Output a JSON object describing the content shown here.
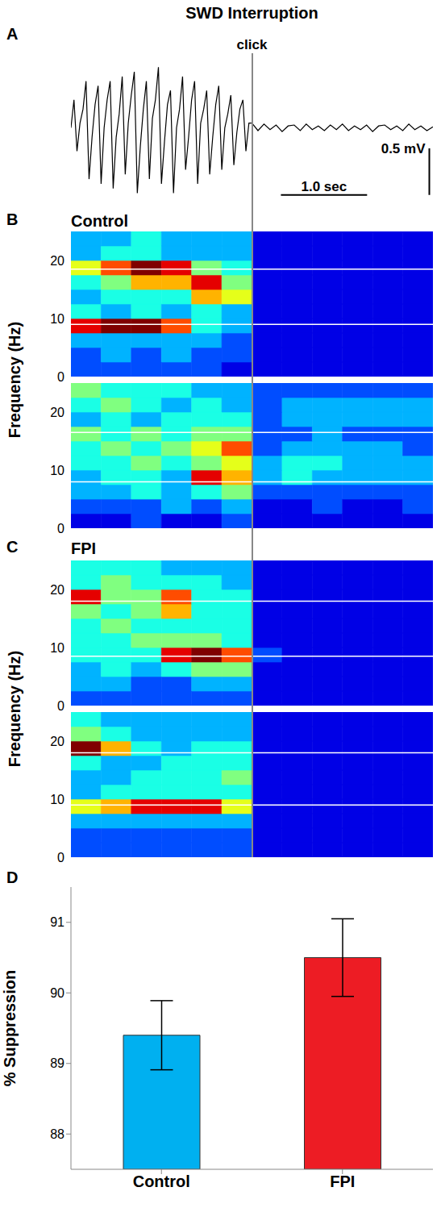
{
  "title": "SWD Interruption",
  "chart_data": [
    {
      "panel": "A",
      "type": "line",
      "annotation": "click",
      "click": 2.1,
      "color": "#000000",
      "tick_labels": false,
      "xlim": [
        0,
        4.2
      ],
      "ylim": [
        -0.8,
        0.8
      ],
      "x": [
        0,
        0.035,
        0.07,
        0.105,
        0.14,
        0.175,
        0.21,
        0.245,
        0.28,
        0.315,
        0.35,
        0.385,
        0.42,
        0.455,
        0.49,
        0.525,
        0.56,
        0.595,
        0.63,
        0.665,
        0.7,
        0.735,
        0.77,
        0.805,
        0.84,
        0.875,
        0.91,
        0.945,
        0.98,
        1.015,
        1.05,
        1.085,
        1.12,
        1.155,
        1.19,
        1.225,
        1.26,
        1.295,
        1.33,
        1.365,
        1.4,
        1.435,
        1.47,
        1.505,
        1.54,
        1.575,
        1.61,
        1.645,
        1.68,
        1.715,
        1.75,
        1.785,
        1.82,
        1.855,
        1.89,
        1.925,
        1.96,
        1.995,
        2.03,
        2.065,
        2.1,
        2.17,
        2.24,
        2.31,
        2.38,
        2.45,
        2.52,
        2.59,
        2.66,
        2.73,
        2.8,
        2.87,
        2.94,
        3.01,
        3.08,
        3.15,
        3.22,
        3.29,
        3.36,
        3.43,
        3.5,
        3.57,
        3.64,
        3.71,
        3.78,
        3.85,
        3.92,
        3.99,
        4.06,
        4.13,
        4.2
      ],
      "values": [
        0,
        0.3,
        -0.25,
        0.05,
        0.2,
        0.5,
        -0.55,
        -0.1,
        0.25,
        0.45,
        -0.6,
        0,
        0.3,
        0.5,
        -0.65,
        -0.1,
        0.15,
        0.55,
        -0.5,
        0.05,
        0.35,
        0.6,
        -0.7,
        -0.2,
        0.2,
        0.5,
        -0.55,
        0.1,
        0.3,
        0.65,
        -0.6,
        -0.15,
        0.25,
        0.4,
        -0.7,
        0,
        0.2,
        0.55,
        -0.45,
        -0.1,
        0.3,
        0.5,
        -0.6,
        0.05,
        0.2,
        0.4,
        -0.5,
        -0.1,
        0.25,
        0.45,
        -0.45,
        0,
        0.15,
        0.35,
        -0.4,
        -0.05,
        0.2,
        0.3,
        -0.25,
        0.05,
        0.05,
        -0.03,
        0.04,
        -0.02,
        0.03,
        -0.04,
        0.02,
        0.03,
        -0.03,
        0.04,
        -0.02,
        0.02,
        -0.03,
        0.03,
        -0.02,
        0.04,
        -0.03,
        0.02,
        -0.02,
        0.03,
        -0.04,
        0.02,
        0.03,
        -0.02,
        0.02,
        -0.03,
        0.04,
        -0.02,
        0.02,
        -0.03,
        0.01
      ],
      "scale_bars": [
        {
          "axis": "x",
          "value": 1.0,
          "label": "1.0 sec"
        },
        {
          "axis": "y",
          "value": 0.5,
          "label": "0.5 mV"
        }
      ]
    },
    {
      "panel": "B",
      "type": "heatmap",
      "title": "Control",
      "ylabel": "Frequency (Hz)",
      "tick_labels": "y",
      "xlim": [
        0,
        4.2
      ],
      "ylim": [
        0,
        25
      ],
      "yticks": [
        0,
        10,
        20
      ],
      "color_range": [
        0,
        10
      ],
      "x_bins": [
        0,
        0.35,
        0.7,
        1.05,
        1.4,
        1.75,
        2.1,
        2.45,
        2.8,
        3.15,
        3.5,
        3.85,
        4.2
      ],
      "y_bins": [
        0,
        2.5,
        5,
        7.5,
        10,
        12.5,
        15,
        17.5,
        20,
        22.5,
        25
      ],
      "maps": [
        {
          "hlines": [
            18.5,
            9
          ],
          "cells": [
            [
              2,
              2,
              2,
              2,
              2,
              1,
              1,
              1,
              1,
              1,
              1,
              1
            ],
            [
              2,
              3,
              2,
              3,
              2,
              2,
              1,
              1,
              1,
              1,
              1,
              1
            ],
            [
              3,
              3,
              3,
              3,
              3,
              2,
              1,
              1,
              1,
              1,
              1,
              1
            ],
            [
              9,
              10,
              10,
              8,
              4,
              3,
              1,
              1,
              1,
              1,
              1,
              1
            ],
            [
              4,
              3,
              4,
              3,
              4,
              3,
              1,
              1,
              1,
              1,
              1,
              1
            ],
            [
              3,
              4,
              4,
              4,
              7,
              6,
              1,
              1,
              1,
              1,
              1,
              1
            ],
            [
              4,
              5,
              7,
              7,
              9,
              5,
              1,
              1,
              1,
              1,
              1,
              1
            ],
            [
              6,
              8,
              10,
              9,
              5,
              4,
              1,
              1,
              1,
              1,
              1,
              1
            ],
            [
              3,
              4,
              4,
              3,
              3,
              3,
              1,
              1,
              1,
              1,
              1,
              1
            ],
            [
              3,
              3,
              4,
              3,
              3,
              3,
              1,
              1,
              1,
              1,
              1,
              1
            ]
          ]
        },
        {
          "hlines": [
            16.5,
            8
          ],
          "cells": [
            [
              1,
              1,
              2,
              1,
              1,
              2,
              1,
              1,
              1,
              1,
              1,
              1
            ],
            [
              2,
              2,
              2,
              3,
              2,
              3,
              1,
              1,
              2,
              1,
              1,
              2
            ],
            [
              3,
              3,
              4,
              3,
              4,
              5,
              2,
              2,
              2,
              2,
              2,
              2
            ],
            [
              3,
              4,
              4,
              3,
              9,
              7,
              3,
              4,
              3,
              3,
              3,
              3
            ],
            [
              4,
              4,
              5,
              4,
              5,
              6,
              3,
              4,
              4,
              3,
              3,
              3
            ],
            [
              4,
              5,
              4,
              5,
              6,
              8,
              2,
              3,
              3,
              3,
              3,
              2
            ],
            [
              5,
              4,
              5,
              4,
              5,
              5,
              2,
              2,
              3,
              2,
              2,
              2
            ],
            [
              3,
              4,
              3,
              4,
              4,
              4,
              2,
              3,
              3,
              3,
              3,
              3
            ],
            [
              4,
              5,
              4,
              3,
              4,
              3,
              2,
              3,
              3,
              3,
              3,
              3
            ],
            [
              5,
              4,
              4,
              4,
              3,
              3,
              2,
              2,
              2,
              2,
              2,
              2
            ]
          ]
        }
      ]
    },
    {
      "panel": "C",
      "type": "heatmap",
      "title": "FPI",
      "ylabel": "Frequency (Hz)",
      "tick_labels": "y",
      "xlim": [
        0,
        4.2
      ],
      "ylim": [
        0,
        25
      ],
      "yticks": [
        0,
        10,
        20
      ],
      "color_range": [
        0,
        10
      ],
      "x_bins": [
        0,
        0.35,
        0.7,
        1.05,
        1.4,
        1.75,
        2.1,
        2.45,
        2.8,
        3.15,
        3.5,
        3.85,
        4.2
      ],
      "y_bins": [
        0,
        2.5,
        5,
        7.5,
        10,
        12.5,
        15,
        17.5,
        20,
        22.5,
        25
      ],
      "maps": [
        {
          "hlines": [
            18,
            8.5
          ],
          "cells": [
            [
              2,
              2,
              2,
              2,
              2,
              2,
              1,
              1,
              1,
              1,
              1,
              1
            ],
            [
              3,
              3,
              2,
              2,
              3,
              3,
              1,
              1,
              1,
              1,
              1,
              1
            ],
            [
              3,
              4,
              3,
              4,
              5,
              5,
              1,
              1,
              1,
              1,
              1,
              1
            ],
            [
              4,
              4,
              4,
              9,
              10,
              8,
              2,
              1,
              1,
              1,
              1,
              1
            ],
            [
              4,
              4,
              5,
              5,
              5,
              4,
              1,
              1,
              1,
              1,
              1,
              1
            ],
            [
              4,
              5,
              4,
              4,
              4,
              4,
              1,
              1,
              1,
              1,
              1,
              1
            ],
            [
              5,
              4,
              5,
              7,
              4,
              4,
              1,
              1,
              1,
              1,
              1,
              1
            ],
            [
              9,
              5,
              5,
              8,
              4,
              4,
              1,
              1,
              1,
              1,
              1,
              1
            ],
            [
              4,
              5,
              4,
              4,
              4,
              3,
              1,
              1,
              1,
              1,
              1,
              1
            ],
            [
              4,
              4,
              4,
              3,
              3,
              3,
              1,
              1,
              1,
              1,
              1,
              1
            ]
          ]
        },
        {
          "hlines": [
            18,
            9
          ],
          "cells": [
            [
              2,
              2,
              2,
              2,
              2,
              2,
              1,
              1,
              1,
              1,
              1,
              1
            ],
            [
              2,
              2,
              2,
              2,
              2,
              2,
              1,
              1,
              1,
              1,
              1,
              1
            ],
            [
              3,
              3,
              3,
              3,
              3,
              3,
              1,
              1,
              1,
              1,
              1,
              1
            ],
            [
              6,
              7,
              9,
              9,
              9,
              6,
              1,
              1,
              1,
              1,
              1,
              1
            ],
            [
              3,
              4,
              4,
              4,
              4,
              4,
              1,
              1,
              1,
              1,
              1,
              1
            ],
            [
              3,
              3,
              4,
              4,
              4,
              5,
              1,
              1,
              1,
              1,
              1,
              1
            ],
            [
              4,
              3,
              3,
              4,
              4,
              4,
              1,
              1,
              1,
              1,
              1,
              1
            ],
            [
              10,
              7,
              4,
              3,
              4,
              4,
              1,
              1,
              1,
              1,
              1,
              1
            ],
            [
              5,
              4,
              3,
              3,
              3,
              3,
              1,
              1,
              1,
              1,
              1,
              1
            ],
            [
              4,
              3,
              3,
              3,
              3,
              3,
              1,
              1,
              1,
              1,
              1,
              1
            ]
          ]
        }
      ]
    },
    {
      "panel": "D",
      "type": "bar",
      "ylabel": "% Suppression",
      "categories": [
        "Control",
        "FPI"
      ],
      "values": [
        89.4,
        90.5
      ],
      "errors": [
        0.49,
        0.55
      ],
      "colors": [
        "#00b0f0",
        "#ed1c24"
      ],
      "ylim": [
        87.5,
        91.5
      ],
      "yticks": [
        88,
        89,
        90,
        91
      ]
    }
  ]
}
